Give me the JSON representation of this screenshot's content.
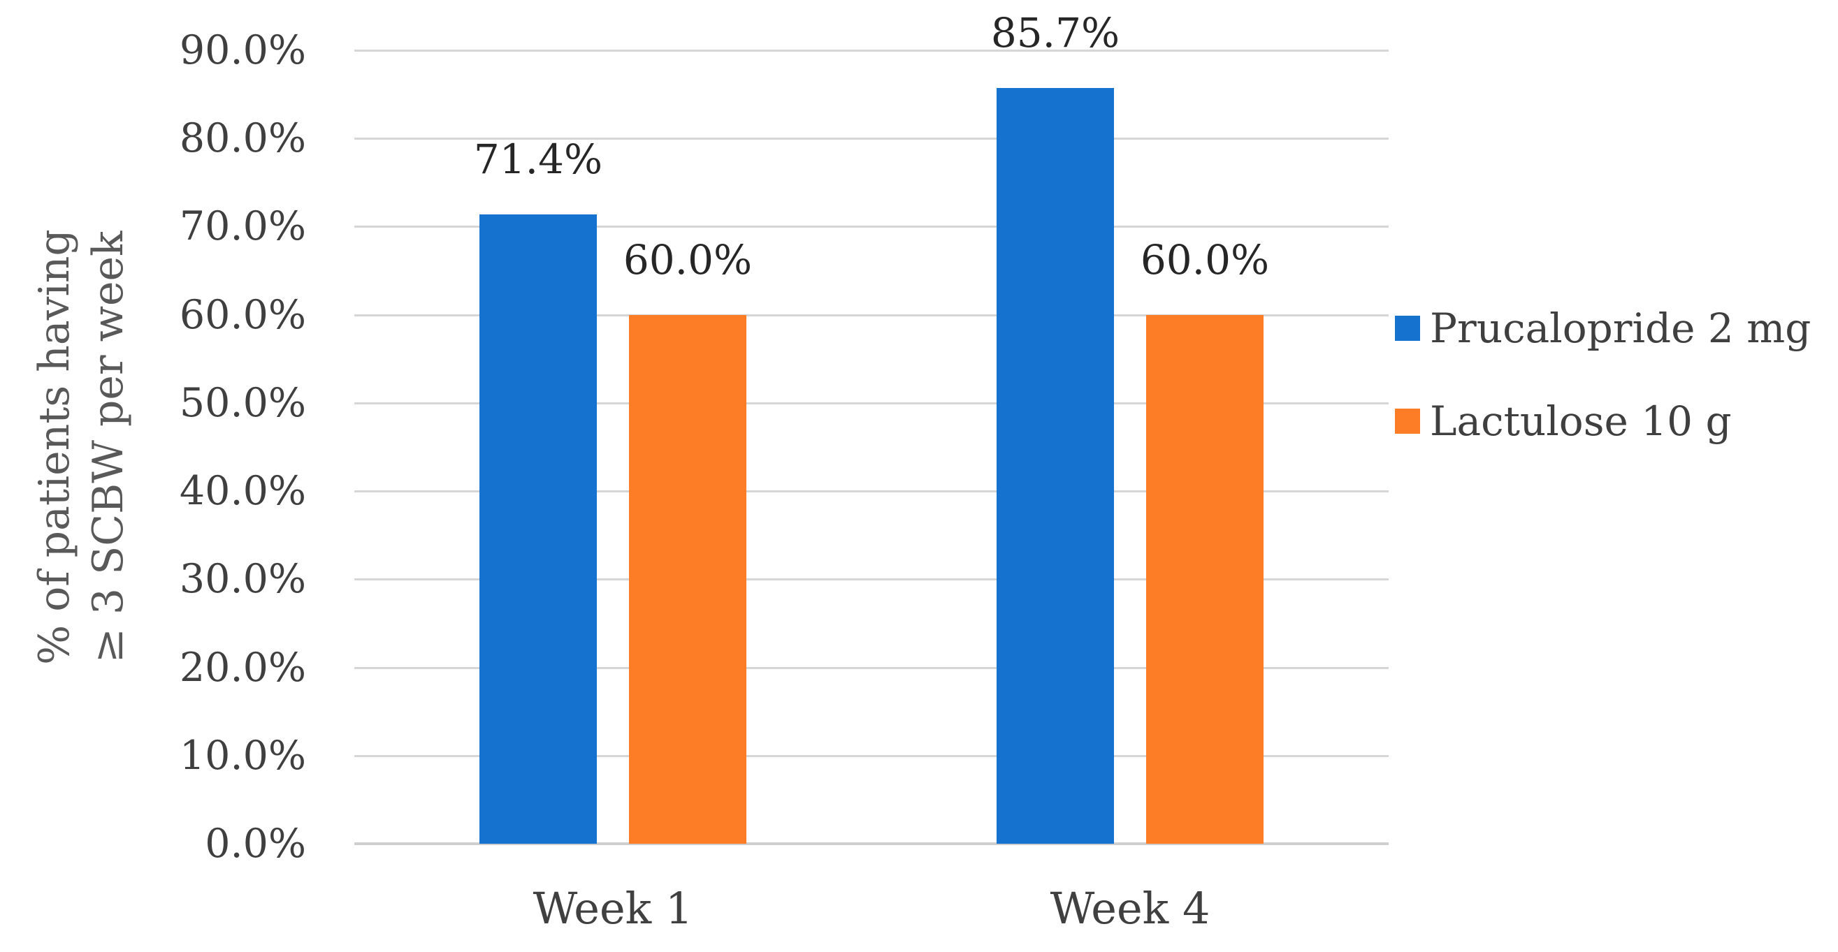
{
  "chart_data": {
    "type": "bar",
    "title": "",
    "categories": [
      "Week 1",
      "Week 4"
    ],
    "series": [
      {
        "name": "Prucalopride 2 mg",
        "color": "#1572CE",
        "values": [
          71.4,
          85.7
        ],
        "labels": [
          "71.4%",
          "85.7%"
        ]
      },
      {
        "name": "Lactulose 10 g",
        "color": "#FD7D26",
        "values": [
          60.0,
          60.0
        ],
        "labels": [
          "60.0%",
          "60.0%"
        ]
      }
    ],
    "xlabel": "",
    "ylabel_lines": [
      "% of patients having",
      "≥ 3 SCBW per week"
    ],
    "ylim": [
      0,
      90
    ],
    "yticks": [
      0,
      10,
      20,
      30,
      40,
      50,
      60,
      70,
      80,
      90
    ],
    "ytick_labels": [
      "0.0%",
      "10.0%",
      "20.0%",
      "30.0%",
      "40.0%",
      "50.0%",
      "60.0%",
      "70.0%",
      "80.0%",
      "90.0%"
    ],
    "grid": true,
    "legend_position": "right"
  },
  "colors": {
    "gridline": "#D6D6D6",
    "axis_line": "#CFCFCF",
    "tick_text": "#3F3F3F",
    "data_label_text": "#262626",
    "category_text": "#404040",
    "legend_text": "#3F3F3F",
    "axis_title_text": "#595959",
    "background": "#FFFFFF"
  }
}
